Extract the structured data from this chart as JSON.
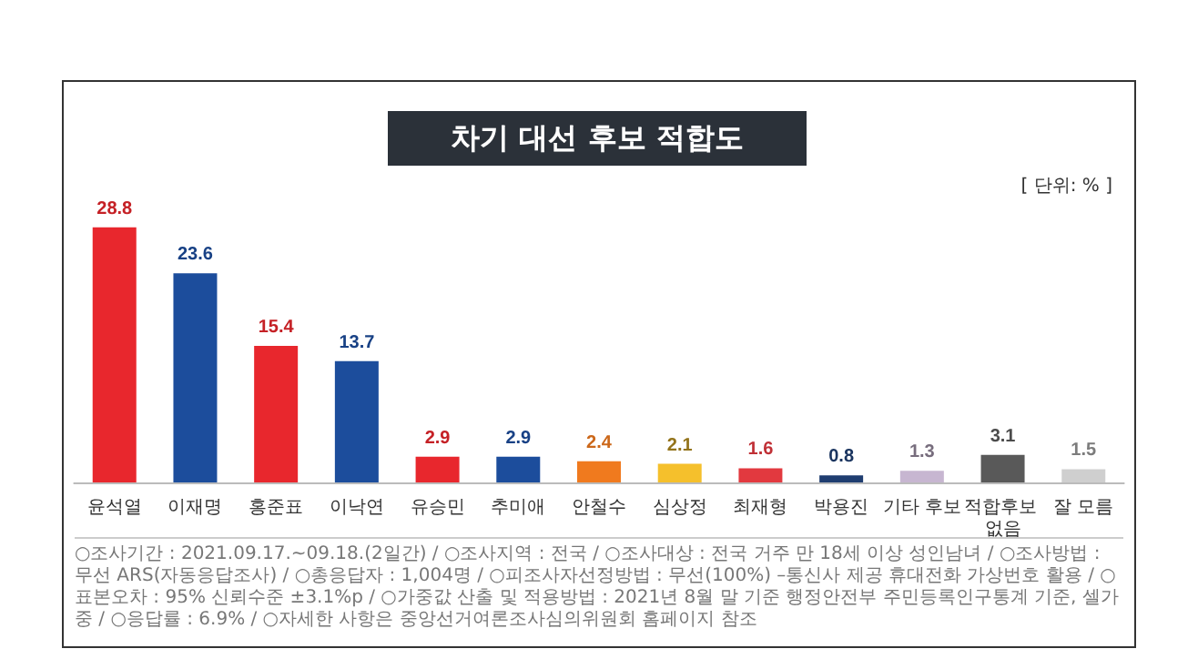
{
  "chart_data": {
    "type": "bar",
    "title": "차기 대선 후보 적합도",
    "categories": [
      "윤석열",
      "이재명",
      "홍준표",
      "이낙연",
      "유승민",
      "추미애",
      "안철수",
      "심상정",
      "최재형",
      "박용진",
      "기타 후보",
      "적합후보 없음",
      "잘 모름"
    ],
    "values": [
      28.8,
      23.6,
      15.4,
      13.7,
      2.9,
      2.9,
      2.4,
      2.1,
      1.6,
      0.8,
      1.3,
      3.1,
      1.5
    ],
    "colors": [
      "#e8272d",
      "#1c4d9c",
      "#e8272d",
      "#1c4d9c",
      "#e8272d",
      "#1c4d9c",
      "#f07a1e",
      "#f5c02c",
      "#e2393f",
      "#1f3d70",
      "#c7b6d1",
      "#595959",
      "#cfcfcf"
    ],
    "data_labels": true,
    "annotations": [
      "[ 단위: % ]",
      "○조사기간 : 2021.09.17.~09.18.(2일간) / ○조사지역 : 전국 / ○조사대상 : 전국 거주 만 18세 이상 성인남녀 / ○조사방법 : 무선 ARS(자동응답조사) / ○총응답자 : 1,004명 / ○피조사자선정방법 : 무선(100%) –통신사 제공 휴대전화 가상번호 활용 / ○표본오차 : 95% 신뢰수준 ±3.1%p / ○가중값 산출 및 적용방법 : 2021년 8월 말 기준 행정안전부 주민등록인구통계 기준, 셀가중 / ○응답률 : 6.9% / ○자세한 사항은 중앙선거여론조사심의위원회 홈페이지 참조"
    ]
  }
}
